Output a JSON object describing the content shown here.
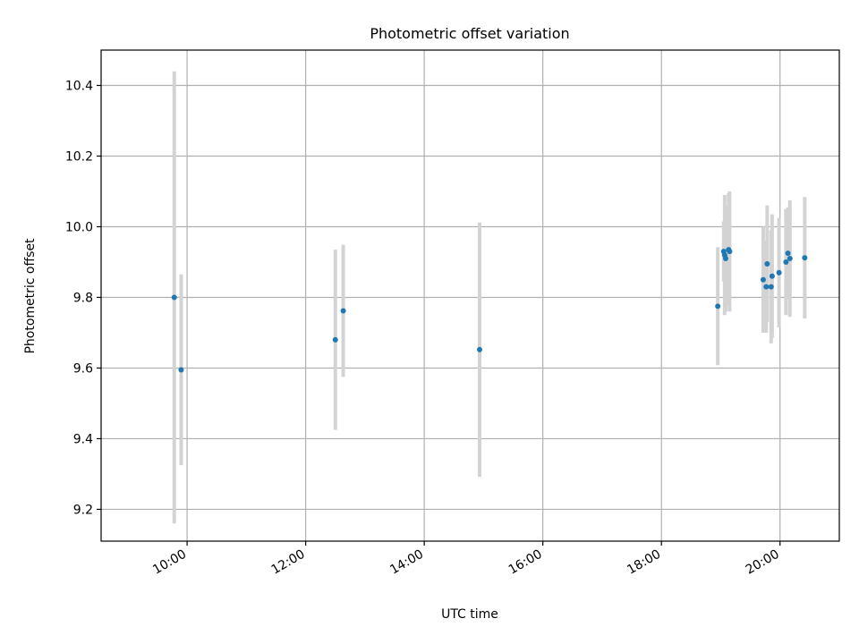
{
  "chart_data": {
    "type": "scatter",
    "title": "Photometric offset variation",
    "xlabel": "UTC time",
    "ylabel": "Photometric offset",
    "xlim": [
      "08:33",
      "21:00"
    ],
    "ylim": [
      9.11,
      10.5
    ],
    "grid": true,
    "x_ticks": [
      "10:00",
      "12:00",
      "14:00",
      "16:00",
      "18:00",
      "20:00"
    ],
    "y_ticks": [
      "9.2",
      "9.4",
      "9.6",
      "9.8",
      "10.0",
      "10.2",
      "10.4"
    ],
    "colors": {
      "point": "#1f77b4",
      "errorbar": "#d3d3d3",
      "grid": "#b0b0b0"
    },
    "points": [
      {
        "x": "09:47",
        "y": 9.8,
        "err": 0.64
      },
      {
        "x": "09:54",
        "y": 9.595,
        "err": 0.27
      },
      {
        "x": "12:30",
        "y": 9.68,
        "err": 0.255
      },
      {
        "x": "12:38",
        "y": 9.762,
        "err": 0.187
      },
      {
        "x": "14:56",
        "y": 9.652,
        "err": 0.36
      },
      {
        "x": "18:57",
        "y": 9.775,
        "err": 0.167
      },
      {
        "x": "19:03",
        "y": 9.93,
        "err": 0.085
      },
      {
        "x": "19:04",
        "y": 9.92,
        "err": 0.17
      },
      {
        "x": "19:05",
        "y": 9.91,
        "err": 0.15
      },
      {
        "x": "19:08",
        "y": 9.935,
        "err": 0.16
      },
      {
        "x": "19:09",
        "y": 9.93,
        "err": 0.17
      },
      {
        "x": "19:43",
        "y": 9.85,
        "err": 0.15
      },
      {
        "x": "19:46",
        "y": 9.83,
        "err": 0.13
      },
      {
        "x": "19:47",
        "y": 9.895,
        "err": 0.165
      },
      {
        "x": "19:51",
        "y": 9.83,
        "err": 0.16
      },
      {
        "x": "19:52",
        "y": 9.86,
        "err": 0.175
      },
      {
        "x": "19:59",
        "y": 9.87,
        "err": 0.155
      },
      {
        "x": "20:06",
        "y": 9.9,
        "err": 0.15
      },
      {
        "x": "20:08",
        "y": 9.925,
        "err": 0.13
      },
      {
        "x": "20:10",
        "y": 9.91,
        "err": 0.165
      },
      {
        "x": "20:25",
        "y": 9.912,
        "err": 0.172
      }
    ]
  }
}
